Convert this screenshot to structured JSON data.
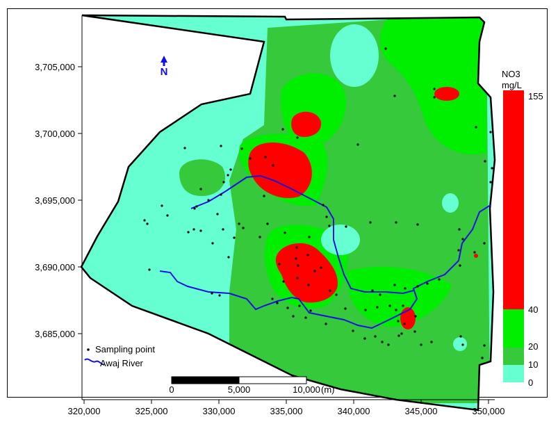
{
  "map": {
    "x_axis_ticks": [
      "320,000",
      "325,000",
      "330,000",
      "335,000",
      "340,000",
      "345,000",
      "350,000"
    ],
    "y_axis_ticks": [
      "3,705,000",
      "3,700,000",
      "3,695,000",
      "3,690,000",
      "3,685,000"
    ],
    "north_arrow_label": "N",
    "colors": {
      "c0_10": "#66ffd2",
      "c10_20": "#35c93b",
      "c20_40": "#00ee00",
      "c40_155": "#ff0000",
      "river": "#1010e0",
      "boundary": "#000000",
      "point": "#000000"
    }
  },
  "legend": {
    "sampling_point": "Sampling point",
    "river": "Awaj River"
  },
  "scale_bar": {
    "labels": [
      "0",
      "5,000",
      "10,000"
    ],
    "unit": "(m)"
  },
  "colorbar": {
    "title_line1": "NO3",
    "title_line2": "mg/L",
    "labels": [
      "155",
      "40",
      "20",
      "10",
      "0"
    ]
  }
}
